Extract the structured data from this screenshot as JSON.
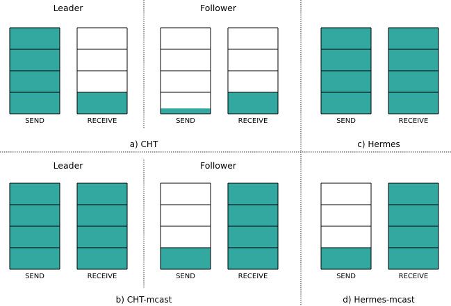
{
  "colors": {
    "fill": "#33a8a0",
    "stroke": "#000000",
    "divider": "#333333"
  },
  "labels": {
    "leader": "Leader",
    "follower": "Follower",
    "send": "SEND",
    "receive": "RECEIVE"
  },
  "panels": [
    {
      "caption": "a) CHT",
      "role_headers": [
        "Leader",
        "Follower"
      ],
      "buffers": [
        {
          "label": "SEND",
          "fill_slots": 4
        },
        {
          "label": "RECEIVE",
          "fill_slots": 1
        },
        {
          "label": "SEND",
          "fill_slots": 0.25
        },
        {
          "label": "RECEIVE",
          "fill_slots": 1
        }
      ]
    },
    {
      "caption": "c) Hermes",
      "role_headers": [],
      "buffers": [
        {
          "label": "SEND",
          "fill_slots": 4
        },
        {
          "label": "RECEIVE",
          "fill_slots": 4
        }
      ]
    },
    {
      "caption": "b) CHT-mcast",
      "role_headers": [
        "Leader",
        "Follower"
      ],
      "buffers": [
        {
          "label": "SEND",
          "fill_slots": 4
        },
        {
          "label": "RECEIVE",
          "fill_slots": 4
        },
        {
          "label": "SEND",
          "fill_slots": 1
        },
        {
          "label": "RECEIVE",
          "fill_slots": 4
        }
      ]
    },
    {
      "caption": "d) Hermes-mcast",
      "role_headers": [],
      "buffers": [
        {
          "label": "SEND",
          "fill_slots": 1
        },
        {
          "label": "RECEIVE",
          "fill_slots": 4
        }
      ]
    }
  ],
  "slots_per_buffer": 4
}
